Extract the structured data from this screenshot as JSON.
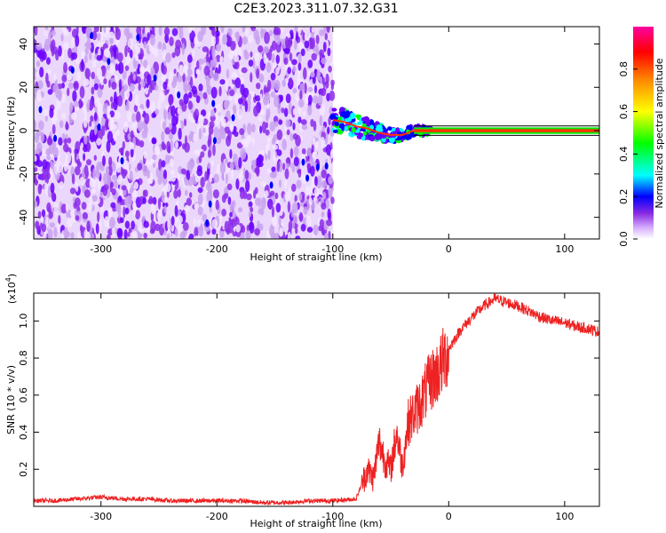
{
  "title": "C2E3.2023.311.07.32.G31",
  "colors": {
    "primary": "#8a2be2",
    "secondary": "#ffffff",
    "line": "#ee2222",
    "colormap": [
      "#f4e6ff",
      "#c9a2f0",
      "#8b2bea",
      "#6a00ff",
      "#0000ff",
      "#00ffff",
      "#00ff00",
      "#ffff00",
      "#ff8800",
      "#ff0000",
      "#ff00a0"
    ]
  },
  "chart_data": [
    {
      "type": "heatmap",
      "xlabel": "Height of straight line (km)",
      "ylabel": "Frequency (Hz)",
      "xlim": [
        -358,
        130
      ],
      "ylim": [
        -50,
        48
      ],
      "xticks": [
        -300,
        -200,
        -100,
        0,
        100
      ],
      "yticks": [
        -40,
        -20,
        0,
        20,
        40
      ],
      "xtick_labels": [
        "-300",
        "-200",
        "-100",
        "0",
        "100"
      ],
      "ytick_labels": [
        "-40",
        "-20",
        "0",
        "20",
        "40"
      ],
      "noise_region_x": [
        -358,
        -100
      ],
      "signal_track": [
        {
          "x": -100,
          "y": 5
        },
        {
          "x": -90,
          "y": 4
        },
        {
          "x": -80,
          "y": 2
        },
        {
          "x": -70,
          "y": 1
        },
        {
          "x": -60,
          "y": -1
        },
        {
          "x": -50,
          "y": -2
        },
        {
          "x": -40,
          "y": -2
        },
        {
          "x": -30,
          "y": 0
        },
        {
          "x": -20,
          "y": 0
        },
        {
          "x": 0,
          "y": 0
        },
        {
          "x": 50,
          "y": 0
        },
        {
          "x": 130,
          "y": 0
        }
      ],
      "colorbar": {
        "label": "Normalized spectral amplitude",
        "range": [
          0,
          1
        ],
        "ticks": [
          0.0,
          0.2,
          0.4,
          0.6,
          0.8
        ],
        "tick_labels": [
          "0.0",
          "0.2",
          "0.4",
          "0.6",
          "0.8"
        ]
      }
    },
    {
      "type": "line",
      "xlabel": "Height of straight line (km)",
      "ylabel": "SNR (10 * v/v)",
      "y_multiplier": "(x10",
      "y_multiplier_exp": "4",
      "y_multiplier_close": ")",
      "xlim": [
        -358,
        130
      ],
      "ylim": [
        0,
        1.15
      ],
      "xticks": [
        -300,
        -200,
        -100,
        0,
        100
      ],
      "yticks": [
        0.2,
        0.4,
        0.6,
        0.8,
        1.0
      ],
      "xtick_labels": [
        "-300",
        "-200",
        "-100",
        "0",
        "100"
      ],
      "ytick_labels": [
        "0.2",
        "0.4",
        "0.6",
        "0.8",
        "1.0"
      ],
      "series": [
        {
          "x": [
            -358,
            -340,
            -320,
            -300,
            -280,
            -260,
            -240,
            -220,
            -200,
            -180,
            -160,
            -140,
            -120,
            -100,
            -80,
            -70,
            -65,
            -60,
            -55,
            -50,
            -45,
            -40,
            -35,
            -30,
            -25,
            -20,
            -15,
            -10,
            -5,
            0,
            10,
            20,
            30,
            40,
            50,
            60,
            70,
            80,
            90,
            100,
            110,
            120,
            130
          ],
          "y": [
            0.03,
            0.03,
            0.04,
            0.05,
            0.04,
            0.04,
            0.03,
            0.03,
            0.03,
            0.03,
            0.02,
            0.02,
            0.03,
            0.03,
            0.04,
            0.2,
            0.15,
            0.35,
            0.25,
            0.2,
            0.4,
            0.22,
            0.45,
            0.5,
            0.55,
            0.62,
            0.68,
            0.72,
            0.78,
            0.85,
            0.95,
            1.02,
            1.08,
            1.12,
            1.1,
            1.08,
            1.05,
            1.02,
            1.0,
            0.99,
            0.97,
            0.96,
            0.94
          ]
        }
      ]
    }
  ]
}
